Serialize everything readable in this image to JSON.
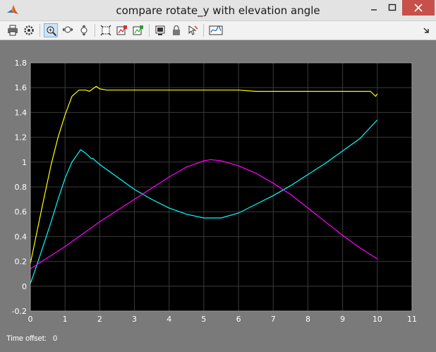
{
  "window": {
    "title": "compare rotate_y with elevation angle"
  },
  "toolbar": {
    "buttons": [
      "print-icon",
      "settings-icon",
      "zoom-in-icon",
      "zoom-x-icon",
      "zoom-y-icon",
      "autoscale-icon",
      "save-axes-icon",
      "restore-axes-icon",
      "floating-scope-icon",
      "lock-icon",
      "signal-selector-icon",
      "style-icon"
    ],
    "active": "zoom-in-icon"
  },
  "status": {
    "time_offset_label": "Time offset:",
    "time_offset_value": "0"
  },
  "chart_data": {
    "type": "line",
    "title": "",
    "xlabel": "",
    "ylabel": "",
    "xlim": [
      0,
      11
    ],
    "ylim": [
      -0.2,
      1.8
    ],
    "xticks": [
      0,
      1,
      2,
      3,
      4,
      5,
      6,
      7,
      8,
      9,
      10,
      11
    ],
    "yticks": [
      -0.2,
      0,
      0.2,
      0.4,
      0.6,
      0.8,
      1,
      1.2,
      1.4,
      1.6,
      1.8
    ],
    "grid": true,
    "background": "#000000",
    "series": [
      {
        "color": "#ffff00",
        "x": [
          0,
          0.2,
          0.4,
          0.6,
          0.8,
          1.0,
          1.2,
          1.4,
          1.6,
          1.7,
          1.8,
          1.9,
          2.0,
          2.2,
          2.6,
          3.0,
          3.5,
          4.0,
          4.5,
          5.0,
          5.5,
          6.0,
          6.5,
          7.0,
          7.5,
          8.0,
          8.5,
          9.0,
          9.5,
          9.8,
          9.95,
          10.0
        ],
        "y": [
          0.18,
          0.45,
          0.72,
          0.98,
          1.2,
          1.38,
          1.53,
          1.58,
          1.58,
          1.57,
          1.59,
          1.61,
          1.59,
          1.58,
          1.58,
          1.58,
          1.58,
          1.58,
          1.58,
          1.58,
          1.58,
          1.58,
          1.57,
          1.57,
          1.57,
          1.57,
          1.57,
          1.57,
          1.57,
          1.57,
          1.53,
          1.55
        ]
      },
      {
        "color": "#00ffff",
        "x": [
          0,
          0.2,
          0.4,
          0.6,
          0.8,
          1.0,
          1.2,
          1.45,
          1.6,
          1.75,
          1.8,
          2.0,
          2.5,
          3.0,
          3.5,
          4.0,
          4.5,
          5.0,
          5.5,
          6.0,
          6.5,
          7.0,
          7.5,
          8.0,
          8.5,
          9.0,
          9.5,
          9.8,
          10.0
        ],
        "y": [
          0.02,
          0.18,
          0.35,
          0.52,
          0.7,
          0.87,
          1.0,
          1.1,
          1.07,
          1.03,
          1.03,
          0.98,
          0.88,
          0.78,
          0.7,
          0.63,
          0.58,
          0.55,
          0.55,
          0.59,
          0.66,
          0.73,
          0.81,
          0.9,
          0.99,
          1.09,
          1.19,
          1.28,
          1.34
        ]
      },
      {
        "color": "#ff00ff",
        "x": [
          0,
          0.5,
          1.0,
          1.5,
          2.0,
          2.5,
          3.0,
          3.5,
          4.0,
          4.5,
          5.0,
          5.2,
          5.5,
          6.0,
          6.5,
          7.0,
          7.5,
          8.0,
          8.5,
          9.0,
          9.5,
          10.0
        ],
        "y": [
          0.14,
          0.23,
          0.32,
          0.42,
          0.52,
          0.61,
          0.7,
          0.79,
          0.88,
          0.96,
          1.01,
          1.02,
          1.01,
          0.97,
          0.91,
          0.83,
          0.74,
          0.63,
          0.52,
          0.41,
          0.31,
          0.22
        ]
      }
    ]
  }
}
